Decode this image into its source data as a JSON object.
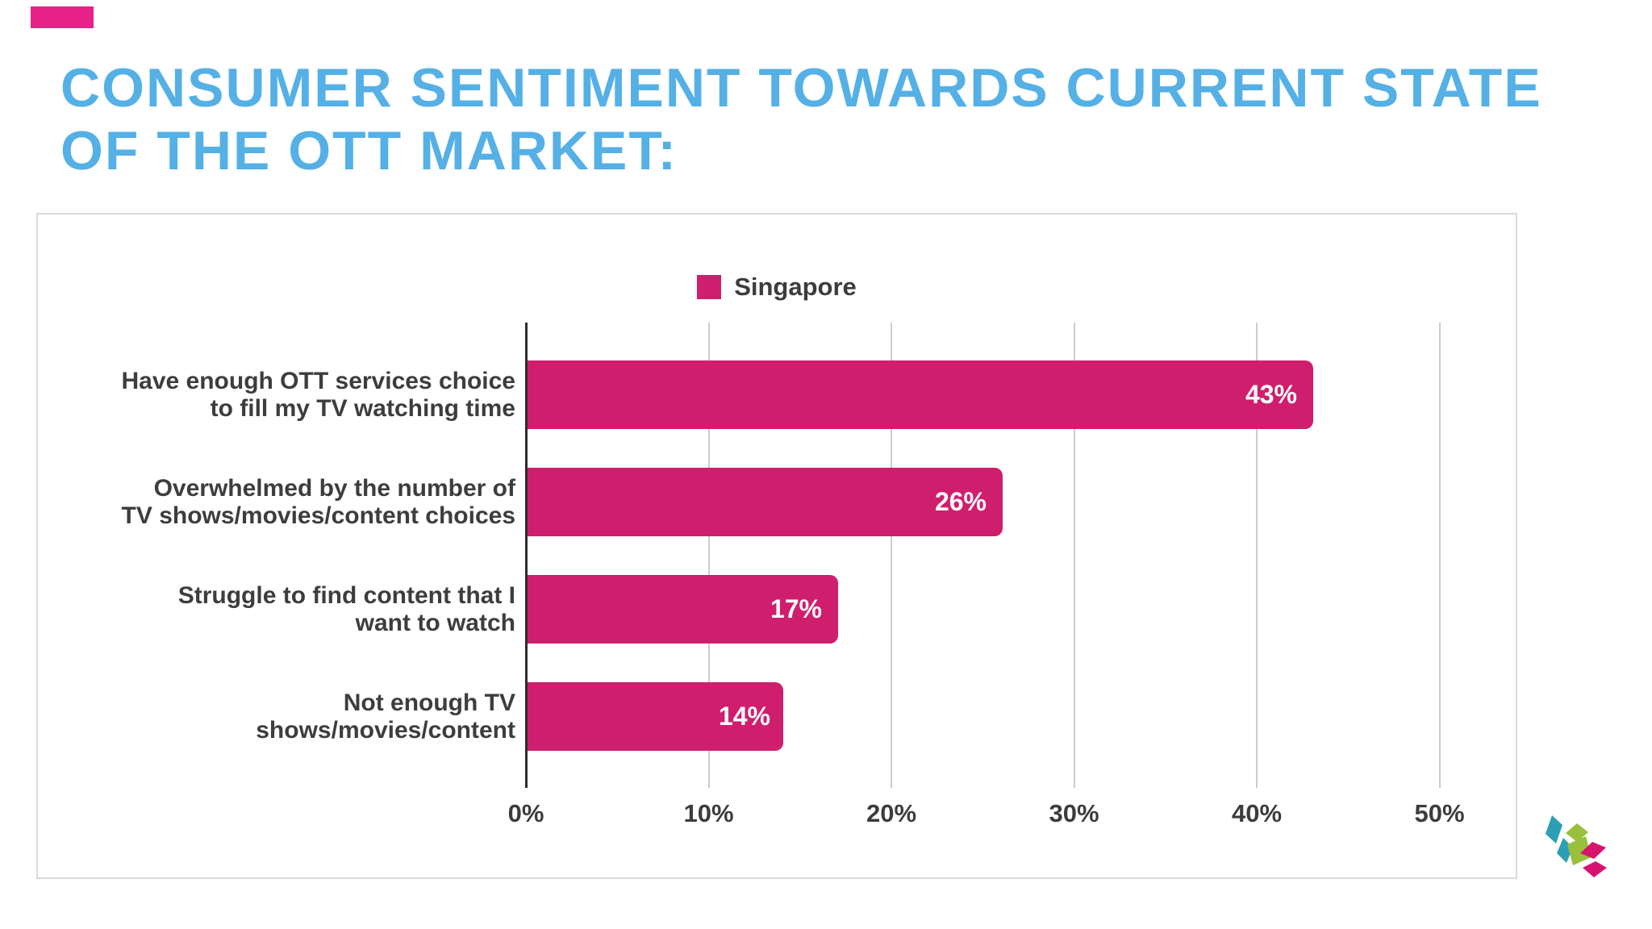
{
  "accent_bar": {
    "color": "#E62289"
  },
  "title": {
    "line1": "CONSUMER SENTIMENT TOWARDS CURRENT STATE",
    "line2": "OF THE OTT MARKET:",
    "color": "#55B0E6"
  },
  "chart_data": {
    "type": "bar",
    "orientation": "horizontal",
    "legend": {
      "label": "Singapore",
      "color": "#D01E6E",
      "position": "top-center"
    },
    "categories": [
      "Have enough OTT services choice to fill my TV watching time",
      "Overwhelmed by the number of TV shows/movies/content choices",
      "Struggle to find content that I want to watch",
      "Not enough TV shows/movies/content"
    ],
    "values": [
      43,
      26,
      17,
      14
    ],
    "rows": [
      {
        "label_line1": "Have enough OTT services choice",
        "label_line2": "to fill my TV watching time",
        "value": 43,
        "value_label": "43%"
      },
      {
        "label_line1": "Overwhelmed by the number of",
        "label_line2": "TV shows/movies/content choices",
        "value": 26,
        "value_label": "26%"
      },
      {
        "label_line1": "Struggle to find content that I",
        "label_line2": "want to watch",
        "value": 17,
        "value_label": "17%"
      },
      {
        "label_line1": "Not enough TV",
        "label_line2": "shows/movies/content",
        "value": 14,
        "value_label": "14%"
      }
    ],
    "x_ticks": [
      "0%",
      "10%",
      "20%",
      "30%",
      "40%",
      "50%"
    ],
    "xlim": [
      0,
      50
    ],
    "grid": true,
    "bar_color": "#D01E6E",
    "value_label_color": "#FFFFFF",
    "gridline_color": "#CCCCCC",
    "axis_color": "#2D2D2D"
  },
  "logo": {
    "colors": {
      "teal": "#2C9FB5",
      "green": "#98C03A",
      "pink": "#D6136F"
    }
  }
}
